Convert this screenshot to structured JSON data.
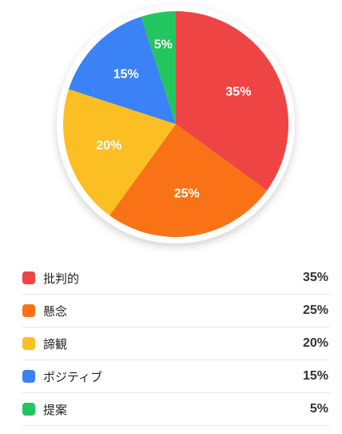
{
  "chart_data": {
    "type": "pie",
    "unit": "%",
    "categories": [
      "批判的",
      "懸念",
      "諦観",
      "ポジティブ",
      "提案"
    ],
    "values": [
      35,
      25,
      20,
      15,
      5
    ],
    "value_labels": [
      "35%",
      "25%",
      "20%",
      "15%",
      "5%"
    ],
    "colors": [
      "#ef4444",
      "#f97316",
      "#fbbf24",
      "#3b82f6",
      "#22c55e"
    ],
    "start": "12 o'clock",
    "direction": "clockwise",
    "legend_position": "bottom"
  },
  "legend": [
    {
      "label": "批判的",
      "value": "35%"
    },
    {
      "label": "懸念",
      "value": "25%"
    },
    {
      "label": "諦観",
      "value": "20%"
    },
    {
      "label": "ポジティブ",
      "value": "15%"
    },
    {
      "label": "提案",
      "value": "5%"
    }
  ]
}
